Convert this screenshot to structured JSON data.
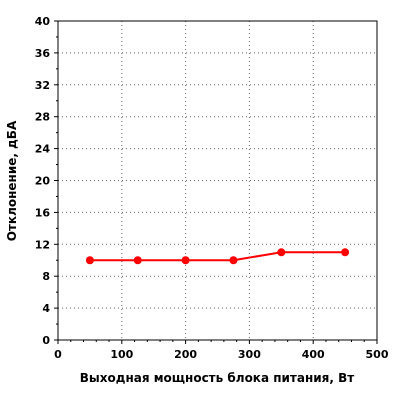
{
  "chart_data": {
    "type": "line",
    "title": "",
    "xlabel": "Выходная мощность блока питания, Вт",
    "ylabel": "Отклонение, дБА",
    "xlim": [
      0,
      500
    ],
    "ylim": [
      0,
      40
    ],
    "xticks": [
      0,
      100,
      200,
      300,
      400,
      500
    ],
    "yticks": [
      0,
      4,
      8,
      12,
      16,
      20,
      24,
      28,
      32,
      36,
      40
    ],
    "grid": true,
    "series": [
      {
        "color": "#ff0000",
        "x": [
          50,
          125,
          200,
          275,
          350,
          450
        ],
        "y": [
          10,
          10,
          10,
          10,
          11,
          11
        ]
      }
    ]
  }
}
